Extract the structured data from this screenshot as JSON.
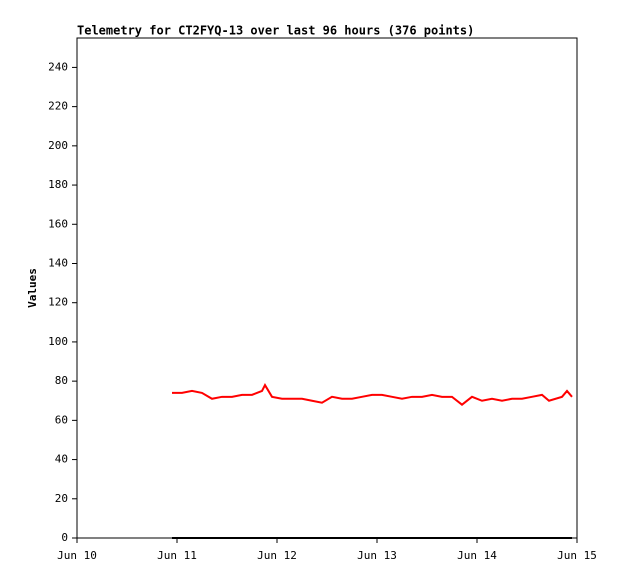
{
  "chart_data": {
    "type": "line",
    "title": "Telemetry for CT2FYQ-13 over last 96 hours (376 points)",
    "y_label": "Values",
    "xlim": [
      10,
      15
    ],
    "xticks": [
      {
        "value": 10,
        "label": "Jun 10"
      },
      {
        "value": 11,
        "label": "Jun 11"
      },
      {
        "value": 12,
        "label": "Jun 12"
      },
      {
        "value": 13,
        "label": "Jun 13"
      },
      {
        "value": 14,
        "label": "Jun 14"
      },
      {
        "value": 15,
        "label": "Jun 15"
      }
    ],
    "ylim": [
      0,
      255
    ],
    "yticks": [
      0,
      20,
      40,
      60,
      80,
      100,
      120,
      140,
      160,
      180,
      200,
      220,
      240
    ],
    "series": [
      {
        "color": "#ff0000",
        "x": [
          10.95,
          11.05,
          11.15,
          11.25,
          11.35,
          11.45,
          11.55,
          11.65,
          11.75,
          11.85,
          11.88,
          11.95,
          12.05,
          12.15,
          12.25,
          12.35,
          12.45,
          12.55,
          12.65,
          12.75,
          12.85,
          12.95,
          13.05,
          13.15,
          13.25,
          13.35,
          13.45,
          13.55,
          13.65,
          13.75,
          13.85,
          13.95,
          14.05,
          14.15,
          14.25,
          14.35,
          14.45,
          14.55,
          14.65,
          14.72,
          14.85,
          14.9,
          14.95
        ],
        "values": [
          74,
          74,
          75,
          74,
          71,
          72,
          72,
          73,
          73,
          75,
          78,
          72,
          71,
          71,
          71,
          70,
          69,
          72,
          71,
          71,
          72,
          73,
          73,
          72,
          71,
          72,
          72,
          73,
          72,
          72,
          68,
          72,
          70,
          71,
          70,
          71,
          71,
          72,
          73,
          70,
          72,
          75,
          72
        ]
      },
      {
        "color": "#000000",
        "x": [
          10.95,
          14.95
        ],
        "values": [
          0,
          0
        ]
      }
    ]
  }
}
